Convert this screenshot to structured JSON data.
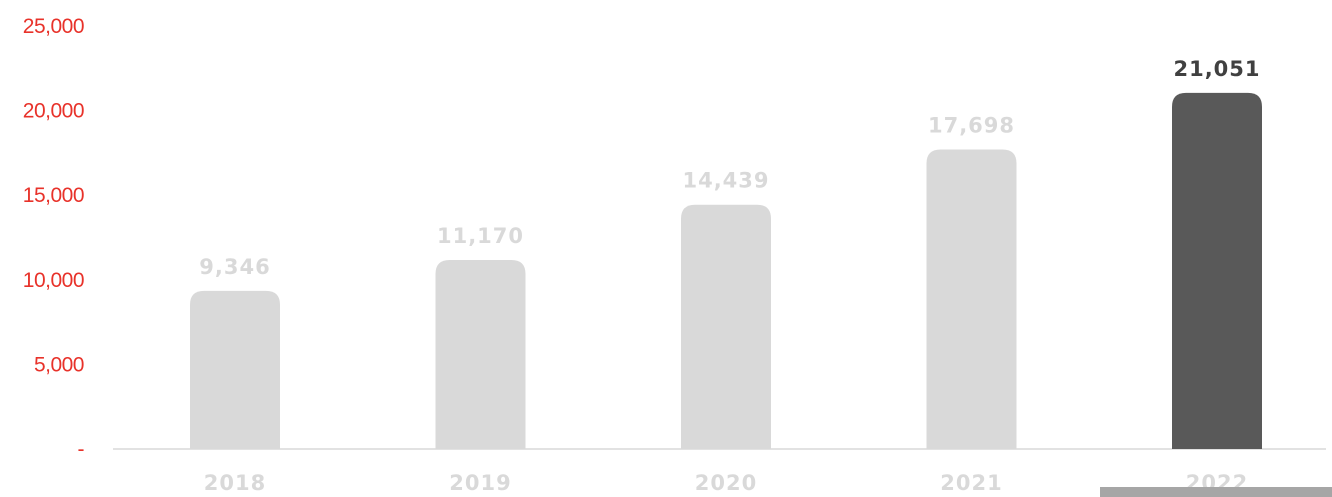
{
  "chart_data": {
    "type": "bar",
    "categories": [
      "2018",
      "2019",
      "2020",
      "2021",
      "2022"
    ],
    "values": [
      9346,
      11170,
      14439,
      17698,
      21051
    ],
    "data_labels": [
      "9,346",
      "11,170",
      "14,439",
      "17,698",
      "21,051"
    ],
    "highlight_index": 4,
    "ylim": [
      0,
      25000
    ],
    "yticks": [
      0,
      5000,
      10000,
      15000,
      20000,
      25000
    ],
    "ytick_labels": [
      "-",
      "5,000",
      "10,000",
      "15,000",
      "20,000",
      "25,000"
    ],
    "grid": false,
    "legend": "none",
    "colors": {
      "bar": "#d9d9d9",
      "bar_highlight": "#595959",
      "data_label": "#d9d9d9",
      "data_label_highlight": "#404040",
      "ytick": "#e8322a",
      "xtick": "#d9d9d9",
      "axis": "#d9d9d9",
      "footer_bar": "#a6a6a6"
    }
  }
}
